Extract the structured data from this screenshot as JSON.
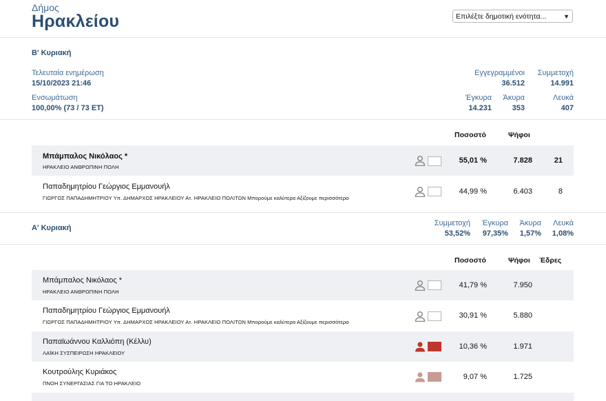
{
  "header": {
    "subtitle": "Δήμος",
    "title": "Ηρακλείου"
  },
  "unit_select": {
    "selected": "Επιλέξτε δημοτική ενότητα..."
  },
  "round_b": {
    "title": "Β' Κυριακή",
    "last_update_label": "Τελευταία ενημέρωση",
    "last_update": "15/10/2023 21:46",
    "integration_label": "Ενσωμάτωση",
    "integration": "100,00% (73 / 73 ΕΤ)",
    "stats": {
      "registered_label": "Εγγεγραμμένοι",
      "registered": "36.512",
      "turnout_label": "Συμμετοχή",
      "turnout": "14.991",
      "valid_label": "Έγκυρα",
      "valid": "14.231",
      "invalid_label": "Άκυρα",
      "invalid": "353",
      "blank_label": "Λευκά",
      "blank": "407"
    },
    "columns": {
      "percent": "Ποσοστό",
      "votes": "Ψήφοι"
    },
    "candidates": [
      {
        "name": "Μπάμπαλος Νικόλαος *",
        "party": "ΗΡΑΚΛΕΙΟ ΑΝΘΡΩΠΙΝΗ ΠΟΛΗ",
        "percent": "55,01 %",
        "votes": "7.828",
        "seats": "21",
        "color": "#ffffff",
        "icon": "person-icon"
      },
      {
        "name": "Παπαδημητρίου Γεώργιος Εμμανουήλ",
        "party": "ΓΙΩΡΓΟΣ ΠΑΠΑΔΗΜΗΤΡΙΟΥ Υπ. ΔΗΜΑΡΧΟΣ ΗΡΑΚΛΕΙΟΥ Ατ. ΗΡΑΚΛΕΙΟ ΠΟΛΙΤΩΝ Μπορούμε καλύτερα Αξίζουμε περισσότερα",
        "percent": "44,99 %",
        "votes": "6.403",
        "seats": "8",
        "color": "#ffffff",
        "icon": "person-icon"
      }
    ]
  },
  "round_a": {
    "title": "Α' Κυριακή",
    "stats": {
      "turnout_label": "Συμμετοχή",
      "turnout": "53,52%",
      "valid_label": "Έγκυρα",
      "valid": "97,35%",
      "invalid_label": "Άκυρα",
      "invalid": "1,57%",
      "blank_label": "Λευκά",
      "blank": "1,08%"
    },
    "columns": {
      "percent": "Ποσοστό",
      "votes": "Ψήφοι",
      "seats": "Έδρες"
    },
    "candidates": [
      {
        "name": "Μπάμπαλος Νικόλαος *",
        "party": "ΗΡΑΚΛΕΙΟ ΑΝΘΡΩΠΙΝΗ ΠΟΛΗ",
        "percent": "41,79 %",
        "votes": "7.950",
        "color": "#ffffff",
        "icon_color": "#8c8c8c"
      },
      {
        "name": "Παπαδημητρίου Γεώργιος Εμμανουήλ",
        "party": "ΓΙΩΡΓΟΣ ΠΑΠΑΔΗΜΗΤΡΙΟΥ Υπ. ΔΗΜΑΡΧΟΣ ΗΡΑΚΛΕΙΟΥ Ατ. ΗΡΑΚΛΕΙΟ ΠΟΛΙΤΩΝ Μπορούμε καλύτερα Αξίζουμε περισσότερα",
        "percent": "30,91 %",
        "votes": "5.880",
        "color": "#ffffff",
        "icon_color": "#8c8c8c"
      },
      {
        "name": "Παπαϊωάννου Καλλιόπη (Κέλλυ)",
        "party": "ΛΑΪΚΗ ΣΥΣΠΕΙΡΩΣΗ ΗΡΑΚΛΕΙΟΥ",
        "percent": "10,36 %",
        "votes": "1.971",
        "color": "#c0362c",
        "icon_color": "#c0362c"
      },
      {
        "name": "Κουτρούλης Κυριάκος",
        "party": "ΠΝΟΗ ΣΥΝΕΡΓΑΣΙΑΣ ΓΙΑ ΤΟ ΗΡΑΚΛΕΙΟ",
        "percent": "9,07 %",
        "votes": "1.725",
        "color": "#c99a94",
        "icon_color": "#c99a94"
      }
    ]
  }
}
